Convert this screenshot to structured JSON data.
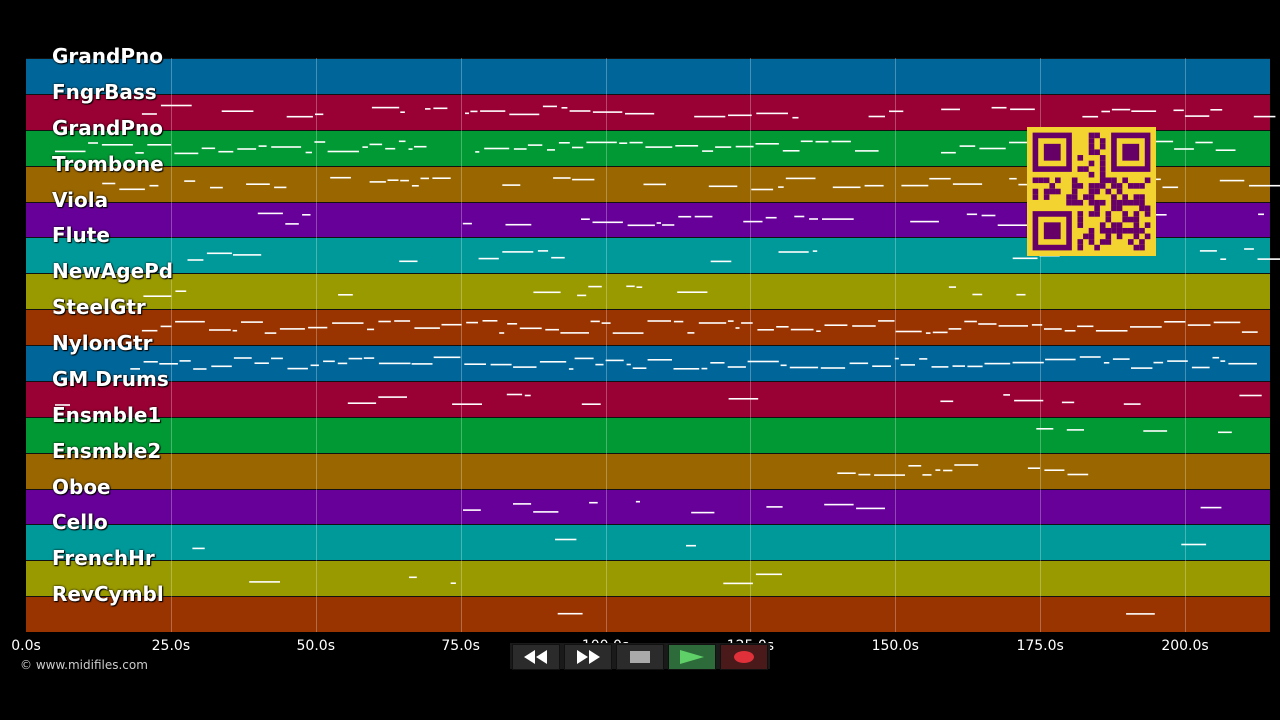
{
  "tracks": [
    {
      "label": "GrandPno",
      "color": "#006699"
    },
    {
      "label": "FngrBass",
      "color": "#990033"
    },
    {
      "label": "GrandPno",
      "color": "#009933"
    },
    {
      "label": "Trombone",
      "color": "#996600"
    },
    {
      "label": "Viola",
      "color": "#660099"
    },
    {
      "label": "Flute",
      "color": "#009999"
    },
    {
      "label": "NewAgePd",
      "color": "#999900"
    },
    {
      "label": "SteelGtr",
      "color": "#993300"
    },
    {
      "label": "NylonGtr",
      "color": "#006699"
    },
    {
      "label": "GM Drums",
      "color": "#990033"
    },
    {
      "label": "Ensmble1",
      "color": "#009933"
    },
    {
      "label": "Ensmble2",
      "color": "#996600"
    },
    {
      "label": "Oboe",
      "color": "#660099"
    },
    {
      "label": "Cello",
      "color": "#009999"
    },
    {
      "label": "FrenchHr",
      "color": "#999900"
    },
    {
      "label": "RevCymbl",
      "color": "#993300"
    }
  ],
  "timeline": {
    "ticks": [
      "0.0s",
      "25.0s",
      "50.0s",
      "75.0s",
      "100.0s",
      "125.0s",
      "150.0s",
      "175.0s",
      "200.0s"
    ],
    "tick_values": [
      0,
      25,
      50,
      75,
      100,
      125,
      150,
      175,
      200
    ],
    "max_seconds": 215
  },
  "copyright": "© www.midifiles.com",
  "transport": {
    "buttons": [
      {
        "name": "rewind-button",
        "icon": "rewind-icon"
      },
      {
        "name": "fast-forward-button",
        "icon": "fast-forward-icon"
      },
      {
        "name": "stop-button",
        "icon": "stop-icon"
      },
      {
        "name": "play-button",
        "icon": "play-icon"
      },
      {
        "name": "record-button",
        "icon": "record-icon"
      }
    ]
  },
  "colors": {
    "note": "#ffffff",
    "qr_bg": "#f3d330",
    "qr_fg": "#660066"
  }
}
